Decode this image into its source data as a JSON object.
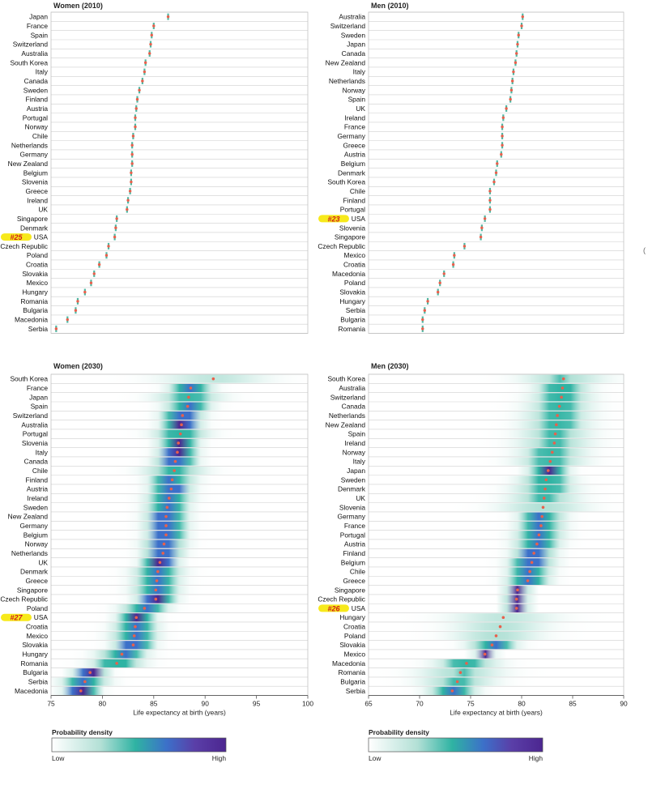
{
  "chart_data": [
    {
      "type": "scatter",
      "title": "Women (2010)",
      "xlim": [
        75,
        100
      ],
      "categories": [
        "Japan",
        "France",
        "Spain",
        "Switzerland",
        "Australia",
        "South Korea",
        "Italy",
        "Canada",
        "Sweden",
        "Finland",
        "Austria",
        "Portugal",
        "Norway",
        "Chile",
        "Netherlands",
        "Germany",
        "New Zealand",
        "Belgium",
        "Slovenia",
        "Greece",
        "Ireland",
        "UK",
        "Singapore",
        "Denmark",
        "USA",
        "Czech Republic",
        "Poland",
        "Croatia",
        "Slovakia",
        "Mexico",
        "Hungary",
        "Romania",
        "Bulgaria",
        "Macedonia",
        "Serbia"
      ],
      "values": [
        86.4,
        85.0,
        84.8,
        84.7,
        84.6,
        84.2,
        84.1,
        83.9,
        83.6,
        83.4,
        83.3,
        83.2,
        83.2,
        83.0,
        82.9,
        82.9,
        82.9,
        82.8,
        82.8,
        82.7,
        82.5,
        82.4,
        81.4,
        81.3,
        81.2,
        80.6,
        80.4,
        79.7,
        79.2,
        78.9,
        78.3,
        77.6,
        77.4,
        76.6,
        75.5
      ],
      "highlight": {
        "country": "USA",
        "rank_label": "#25"
      }
    },
    {
      "type": "scatter",
      "title": "Men (2010)",
      "xlim": [
        65,
        90
      ],
      "categories": [
        "Australia",
        "Switzerland",
        "Sweden",
        "Japan",
        "Canada",
        "New Zealand",
        "Italy",
        "Netherlands",
        "Norway",
        "Spain",
        "UK",
        "Ireland",
        "France",
        "Germany",
        "Greece",
        "Austria",
        "Belgium",
        "Denmark",
        "South Korea",
        "Chile",
        "Finland",
        "Portugal",
        "USA",
        "Slovenia",
        "Singapore",
        "Czech Republic",
        "Mexico",
        "Croatia",
        "Macedonia",
        "Poland",
        "Slovakia",
        "Hungary",
        "Serbia",
        "Bulgaria",
        "Romania"
      ],
      "values": [
        80.1,
        80.0,
        79.7,
        79.6,
        79.5,
        79.4,
        79.2,
        79.1,
        79.0,
        78.9,
        78.5,
        78.2,
        78.1,
        78.1,
        78.1,
        78.0,
        77.6,
        77.5,
        77.3,
        76.9,
        76.9,
        76.9,
        76.4,
        76.1,
        76.0,
        74.4,
        73.4,
        73.3,
        72.4,
        72.0,
        71.8,
        70.8,
        70.5,
        70.3,
        70.3
      ],
      "highlight": {
        "country": "USA",
        "rank_label": "#23"
      }
    },
    {
      "type": "heatmap",
      "title": "Women (2030)",
      "xlabel": "Life expectancy at birth (years)",
      "xlim": [
        75,
        100
      ],
      "x_ticks": [
        75,
        80,
        85,
        90,
        95,
        100
      ],
      "categories": [
        "South Korea",
        "France",
        "Japan",
        "Spain",
        "Switzerland",
        "Australia",
        "Portugal",
        "Slovenia",
        "Italy",
        "Canada",
        "Chile",
        "Finland",
        "Austria",
        "Ireland",
        "Sweden",
        "New Zealand",
        "Germany",
        "Belgium",
        "Norway",
        "Netherlands",
        "UK",
        "Denmark",
        "Greece",
        "Singapore",
        "Czech Republic",
        "Poland",
        "USA",
        "Croatia",
        "Mexico",
        "Slovakia",
        "Hungary",
        "Romania",
        "Bulgaria",
        "Serbia",
        "Macedonia"
      ],
      "median": [
        90.8,
        88.6,
        88.4,
        88.3,
        87.8,
        87.7,
        87.6,
        87.4,
        87.3,
        87.1,
        87.0,
        86.8,
        86.7,
        86.5,
        86.3,
        86.2,
        86.2,
        86.2,
        86.0,
        85.9,
        85.6,
        85.4,
        85.3,
        85.2,
        85.2,
        84.1,
        83.3,
        83.2,
        83.1,
        83.0,
        81.9,
        81.4,
        78.8,
        78.3,
        77.9
      ],
      "spread_sd": [
        3.2,
        1.2,
        2.0,
        1.3,
        1.2,
        1.1,
        1.6,
        1.1,
        1.1,
        1.2,
        1.8,
        1.3,
        1.2,
        1.3,
        1.2,
        1.2,
        1.2,
        1.1,
        1.2,
        1.1,
        1.0,
        1.4,
        1.3,
        1.3,
        1.1,
        1.3,
        1.0,
        1.2,
        1.3,
        1.1,
        1.4,
        1.5,
        0.9,
        1.3,
        0.9
      ],
      "highlight": {
        "country": "USA",
        "rank_label": "#27"
      }
    },
    {
      "type": "heatmap",
      "title": "Men (2030)",
      "xlabel": "Life expectancy at birth (years)",
      "xlim": [
        65,
        90
      ],
      "x_ticks": [
        65,
        70,
        75,
        80,
        85,
        90
      ],
      "categories": [
        "South Korea",
        "Australia",
        "Switzerland",
        "Canada",
        "Netherlands",
        "New Zealand",
        "Spain",
        "Ireland",
        "Norway",
        "Italy",
        "Japan",
        "Sweden",
        "Denmark",
        "UK",
        "Slovenia",
        "Germany",
        "France",
        "Portugal",
        "Austria",
        "Finland",
        "Belgium",
        "Chile",
        "Greece",
        "Singapore",
        "Czech Republic",
        "USA",
        "Hungary",
        "Croatia",
        "Poland",
        "Slovakia",
        "Mexico",
        "Macedonia",
        "Romania",
        "Bulgaria",
        "Serbia"
      ],
      "median": [
        84.1,
        84.0,
        83.9,
        83.7,
        83.5,
        83.4,
        83.3,
        83.2,
        83.0,
        82.8,
        82.6,
        82.4,
        82.3,
        82.2,
        82.1,
        82.0,
        81.9,
        81.7,
        81.5,
        81.2,
        81.0,
        80.8,
        80.6,
        79.6,
        79.5,
        79.5,
        78.2,
        77.9,
        77.5,
        77.1,
        76.4,
        74.6,
        74.0,
        73.7,
        73.2
      ],
      "spread_sd": [
        2.5,
        1.6,
        1.8,
        1.9,
        2.0,
        2.0,
        2.1,
        2.2,
        2.0,
        2.1,
        1.1,
        1.6,
        1.9,
        2.1,
        2.6,
        1.3,
        1.3,
        1.4,
        1.3,
        1.2,
        1.3,
        1.2,
        1.2,
        0.6,
        0.6,
        0.6,
        3.2,
        2.8,
        2.6,
        1.4,
        0.5,
        1.9,
        2.5,
        2.2,
        1.4
      ],
      "highlight": {
        "country": "USA",
        "rank_label": "#26"
      }
    }
  ],
  "legend": [
    {
      "title": "Probability density",
      "low_label": "Low",
      "high_label": "High"
    },
    {
      "title": "Probability density",
      "low_label": "Low",
      "high_label": "High"
    }
  ],
  "colors": {
    "point": "#e8604c",
    "ci": "#4fb8a3",
    "highlight": "#f7e91b",
    "highlight_text": "#d01c1c",
    "grid": "#cfcfcf",
    "density_low": "#ffffff",
    "density_mid": "#2fb3a3",
    "density_blue": "#3c70c9",
    "density_high": "#4c2690"
  },
  "side_mark": "("
}
